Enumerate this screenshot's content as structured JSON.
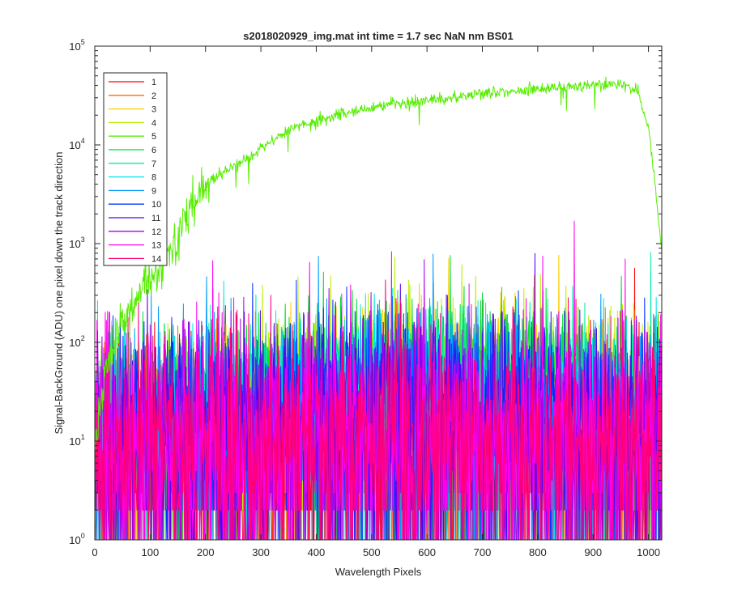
{
  "chart_data": {
    "type": "line",
    "title": "s2018020929_img.mat int time = 1.7 sec  NaN nm BS01",
    "xlabel": "Wavelength Pixels",
    "ylabel": "Signal-BackGround (ADU) one pixel down the track direction",
    "xlim": [
      0,
      1024
    ],
    "ylim": [
      1,
      100000
    ],
    "yscale": "log",
    "grid": false,
    "legend_position": "top-left",
    "x_ticks": [
      "0",
      "100",
      "200",
      "300",
      "400",
      "500",
      "600",
      "700",
      "800",
      "900",
      "1000"
    ],
    "y_ticks": [
      {
        "base": "10",
        "exp": "0"
      },
      {
        "base": "10",
        "exp": "1"
      },
      {
        "base": "10",
        "exp": "2"
      },
      {
        "base": "10",
        "exp": "3"
      },
      {
        "base": "10",
        "exp": "4"
      },
      {
        "base": "10",
        "exp": "5"
      }
    ],
    "series": [
      {
        "name": "1",
        "color": "#ff0000",
        "level": [
          [
            0,
            8
          ],
          [
            1024,
            8
          ]
        ],
        "noise": 0.55
      },
      {
        "name": "2",
        "color": "#ff6a00",
        "level": [
          [
            0,
            9
          ],
          [
            1024,
            9
          ]
        ],
        "noise": 0.55
      },
      {
        "name": "3",
        "color": "#ffcc00",
        "level": [
          [
            0,
            15
          ],
          [
            400,
            35
          ],
          [
            600,
            45
          ],
          [
            800,
            35
          ],
          [
            1024,
            22
          ]
        ],
        "noise": 0.4
      },
      {
        "name": "4",
        "color": "#b8f000",
        "level": [
          [
            0,
            18
          ],
          [
            400,
            45
          ],
          [
            600,
            55
          ],
          [
            800,
            45
          ],
          [
            1024,
            28
          ]
        ],
        "noise": 0.4
      },
      {
        "name": "5",
        "color": "#55ee00",
        "level": [
          [
            0,
            8
          ],
          [
            10,
            20
          ],
          [
            20,
            60
          ],
          [
            40,
            120
          ],
          [
            60,
            200
          ],
          [
            80,
            300
          ],
          [
            100,
            500
          ],
          [
            130,
            700
          ],
          [
            150,
            1200
          ],
          [
            170,
            2500
          ],
          [
            200,
            4000
          ],
          [
            250,
            6000
          ],
          [
            300,
            9000
          ],
          [
            350,
            14000
          ],
          [
            400,
            18000
          ],
          [
            500,
            24000
          ],
          [
            600,
            28000
          ],
          [
            700,
            33000
          ],
          [
            800,
            37000
          ],
          [
            900,
            40000
          ],
          [
            960,
            40000
          ],
          [
            980,
            35000
          ],
          [
            1000,
            15000
          ],
          [
            1010,
            5000
          ],
          [
            1024,
            800
          ]
        ],
        "noise": 0.05
      },
      {
        "name": "6",
        "color": "#00dd33",
        "level": [
          [
            0,
            20
          ],
          [
            400,
            50
          ],
          [
            600,
            65
          ],
          [
            800,
            55
          ],
          [
            1024,
            32
          ]
        ],
        "noise": 0.35
      },
      {
        "name": "7",
        "color": "#00eeaa",
        "level": [
          [
            0,
            18
          ],
          [
            500,
            38
          ],
          [
            1024,
            24
          ]
        ],
        "noise": 0.4
      },
      {
        "name": "8",
        "color": "#00e5e5",
        "level": [
          [
            0,
            16
          ],
          [
            500,
            34
          ],
          [
            1024,
            22
          ]
        ],
        "noise": 0.4
      },
      {
        "name": "9",
        "color": "#0099ff",
        "level": [
          [
            0,
            15
          ],
          [
            500,
            32
          ],
          [
            1024,
            20
          ]
        ],
        "noise": 0.45
      },
      {
        "name": "10",
        "color": "#0033ff",
        "level": [
          [
            0,
            14
          ],
          [
            500,
            30
          ],
          [
            1024,
            20
          ]
        ],
        "noise": 0.45
      },
      {
        "name": "11",
        "color": "#5500ee",
        "level": [
          [
            0,
            12
          ],
          [
            500,
            22
          ],
          [
            1024,
            16
          ]
        ],
        "noise": 0.5
      },
      {
        "name": "12",
        "color": "#aa00ee",
        "level": [
          [
            0,
            10
          ],
          [
            500,
            14
          ],
          [
            1024,
            12
          ]
        ],
        "noise": 0.55
      },
      {
        "name": "13",
        "color": "#ff00ee",
        "level": [
          [
            0,
            10
          ],
          [
            500,
            12
          ],
          [
            1024,
            10
          ]
        ],
        "noise": 0.6
      },
      {
        "name": "14",
        "color": "#ff0077",
        "level": [
          [
            0,
            10
          ],
          [
            500,
            13
          ],
          [
            1024,
            11
          ]
        ],
        "noise": 0.55
      }
    ]
  }
}
